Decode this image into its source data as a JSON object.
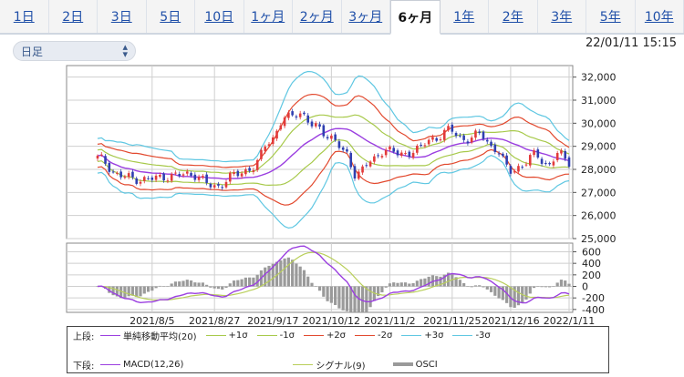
{
  "tabs": [
    {
      "label": "1日",
      "active": false
    },
    {
      "label": "2日",
      "active": false
    },
    {
      "label": "3日",
      "active": false
    },
    {
      "label": "5日",
      "active": false
    },
    {
      "label": "10日",
      "active": false
    },
    {
      "label": "1ヶ月",
      "active": false
    },
    {
      "label": "2ヶ月",
      "active": false
    },
    {
      "label": "3ヶ月",
      "active": false
    },
    {
      "label": "6ヶ月",
      "active": true
    },
    {
      "label": "1年",
      "active": false
    },
    {
      "label": "2年",
      "active": false
    },
    {
      "label": "3年",
      "active": false
    },
    {
      "label": "5年",
      "active": false
    },
    {
      "label": "10年",
      "active": false
    }
  ],
  "period_select": {
    "value": "日足",
    "icon": "chevron-updown-icon"
  },
  "timestamp": "22/01/11 15:15",
  "colors": {
    "up": "#e23a3a",
    "down": "#2f3fb0",
    "sma": "#9b3fe0",
    "sigma1": "#a7c94a",
    "sigma2": "#e2492e",
    "sigma3": "#5fc7e2",
    "macd": "#9b3fe0",
    "signal": "#b9cf5a",
    "osci": "#9a9a9a",
    "grid": "#cfcfcf"
  },
  "chart_data": [
    {
      "type": "candlestick",
      "panel": "upper",
      "ylim": [
        25000,
        32500
      ],
      "yticks": [
        "32,000",
        "31,000",
        "30,000",
        "29,000",
        "28,000",
        "27,000",
        "26,000",
        "25,000"
      ],
      "ytick_values": [
        32000,
        31000,
        30000,
        29000,
        28000,
        27000,
        26000,
        25000
      ],
      "x_count": 122,
      "close_anchors": [
        [
          0,
          28500
        ],
        [
          6,
          27700
        ],
        [
          12,
          27550
        ],
        [
          18,
          27700
        ],
        [
          24,
          27800
        ],
        [
          30,
          27250
        ],
        [
          36,
          27800
        ],
        [
          40,
          28100
        ],
        [
          44,
          29200
        ],
        [
          48,
          30200
        ],
        [
          52,
          30450
        ],
        [
          56,
          29800
        ],
        [
          60,
          29400
        ],
        [
          64,
          28600
        ],
        [
          66,
          27800
        ],
        [
          70,
          28300
        ],
        [
          74,
          28900
        ],
        [
          78,
          28600
        ],
        [
          82,
          28900
        ],
        [
          86,
          29300
        ],
        [
          90,
          29700
        ],
        [
          94,
          29300
        ],
        [
          98,
          29500
        ],
        [
          102,
          28900
        ],
        [
          106,
          27900
        ],
        [
          108,
          28100
        ],
        [
          112,
          28600
        ],
        [
          116,
          28200
        ],
        [
          118,
          28700
        ],
        [
          121,
          28300
        ]
      ],
      "overlays": [
        "sma20",
        "+1σ",
        "-1σ",
        "+2σ",
        "-2σ",
        "+3σ",
        "-3σ"
      ]
    },
    {
      "type": "line+bar",
      "panel": "lower",
      "ylim": [
        -450,
        750
      ],
      "yticks": [
        "600",
        "400",
        "200",
        "0",
        "-200",
        "-400"
      ],
      "ytick_values": [
        600,
        400,
        200,
        0,
        -200,
        -400
      ],
      "series": [
        {
          "name": "MACD(12,26)",
          "kind": "line"
        },
        {
          "name": "シグナル(9)",
          "kind": "line"
        },
        {
          "name": "OSCI",
          "kind": "bar"
        }
      ]
    }
  ],
  "xaxis": {
    "labels": [
      "2021/8/5",
      "2021/8/27",
      "2021/9/17",
      "2021/10/12",
      "2021/11/2",
      "2021/11/25",
      "2021/12/16",
      "2022/1/11"
    ],
    "label_indices": [
      14,
      30,
      45,
      60,
      75,
      91,
      106,
      121
    ]
  },
  "legend": {
    "upper_title": "上段:",
    "upper_items": [
      {
        "label": "単純移動平均(20)",
        "color_key": "sma"
      },
      {
        "label": "+1σ",
        "color_key": "sigma1"
      },
      {
        "label": "-1σ",
        "color_key": "sigma1"
      },
      {
        "label": "+2σ",
        "color_key": "sigma2"
      },
      {
        "label": "-2σ",
        "color_key": "sigma2"
      },
      {
        "label": "+3σ",
        "color_key": "sigma3"
      },
      {
        "label": "-3σ",
        "color_key": "sigma3"
      }
    ],
    "lower_title": "下段:",
    "lower_items": [
      {
        "label": "MACD(12,26)",
        "color_key": "macd",
        "kind": "line"
      },
      {
        "label": "シグナル(9)",
        "color_key": "signal",
        "kind": "line"
      },
      {
        "label": "OSCI",
        "color_key": "osci",
        "kind": "bar"
      }
    ]
  }
}
